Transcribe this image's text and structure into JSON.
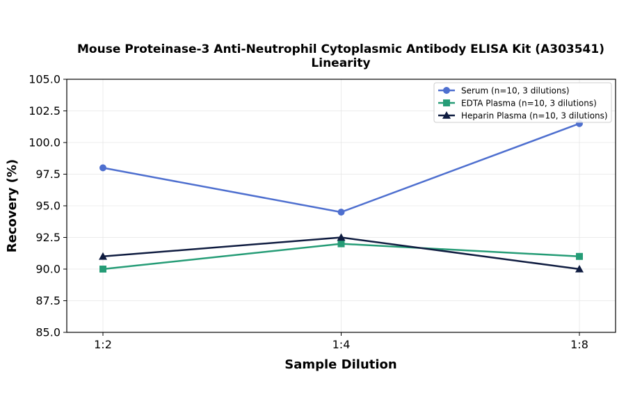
{
  "chart_data": {
    "type": "line",
    "title": "Mouse Proteinase-3 Anti-Neutrophil Cytoplasmic Antibody ELISA Kit (A303541)",
    "subtitle": "Linearity",
    "xlabel": "Sample Dilution",
    "ylabel": "Recovery (%)",
    "categories": [
      "1:2",
      "1:4",
      "1:8"
    ],
    "ylim": [
      85.0,
      105.0
    ],
    "yticks": [
      "85.0",
      "87.5",
      "90.0",
      "92.5",
      "95.0",
      "97.5",
      "100.0",
      "102.5",
      "105.0"
    ],
    "grid": true,
    "legend_position": "top-right",
    "series": [
      {
        "name": "Serum (n=10, 3 dilutions)",
        "values": [
          98.0,
          94.5,
          101.5
        ],
        "color": "#4e6fcf",
        "marker": "circle"
      },
      {
        "name": "EDTA Plasma (n=10, 3 dilutions)",
        "values": [
          90.0,
          92.0,
          91.0
        ],
        "color": "#259c76",
        "marker": "square"
      },
      {
        "name": "Heparin Plasma (n=10, 3 dilutions)",
        "values": [
          91.0,
          92.5,
          90.0
        ],
        "color": "#0f1c40",
        "marker": "triangle"
      }
    ]
  }
}
